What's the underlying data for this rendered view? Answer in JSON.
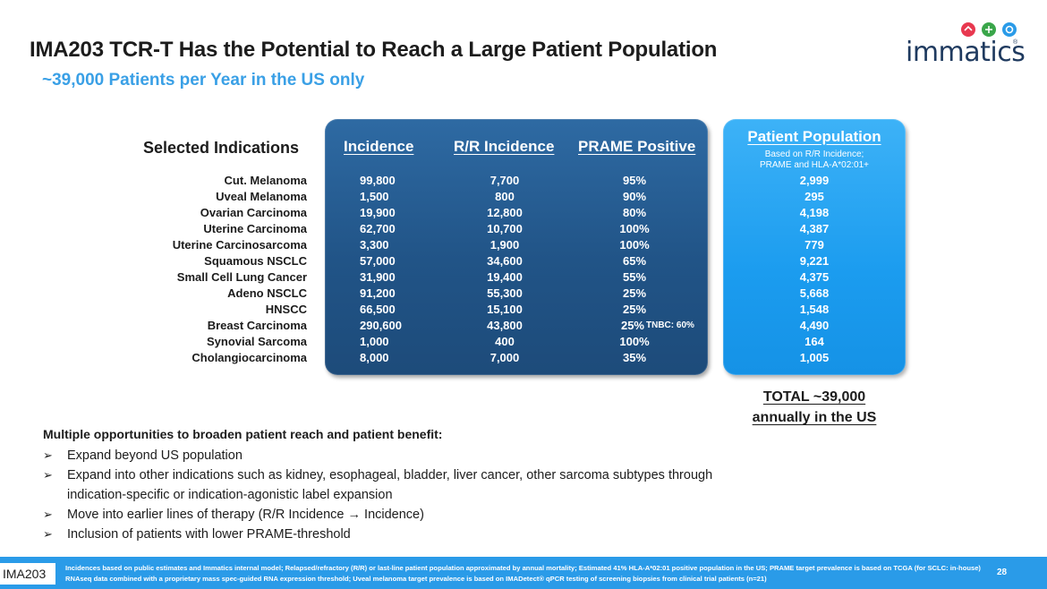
{
  "slide": {
    "title": "IMA203 TCR-T Has the Potential to Reach a Large Patient Population",
    "subtitle": "~39,000 Patients per Year in the US only"
  },
  "logo": {
    "text": "immatics",
    "registered": "®",
    "dot_colors": [
      "#e8384f",
      "#3aa64a",
      "#2a9be8"
    ]
  },
  "table": {
    "row_header": "Selected Indications",
    "columns": {
      "incidence": "Incidence",
      "rr_incidence": "R/R Incidence",
      "prame_positive": "PRAME Positive",
      "patient_population": "Patient Population",
      "patient_population_sub": "Based on R/R Incidence;\nPRAME and HLA-A*02:01+"
    },
    "rows": [
      {
        "indication": "Cut. Melanoma",
        "incidence": "99,800",
        "rr": "7,700",
        "prame": "95%",
        "note": "",
        "population": "2,999"
      },
      {
        "indication": "Uveal Melanoma",
        "incidence": "1,500",
        "rr": "800",
        "prame": "90%",
        "note": "",
        "population": "295"
      },
      {
        "indication": "Ovarian Carcinoma",
        "incidence": "19,900",
        "rr": "12,800",
        "prame": "80%",
        "note": "",
        "population": "4,198"
      },
      {
        "indication": "Uterine Carcinoma",
        "incidence": "62,700",
        "rr": "10,700",
        "prame": "100%",
        "note": "",
        "population": "4,387"
      },
      {
        "indication": "Uterine Carcinosarcoma",
        "incidence": "3,300",
        "rr": "1,900",
        "prame": "100%",
        "note": "",
        "population": "779"
      },
      {
        "indication": "Squamous NSCLC",
        "incidence": "57,000",
        "rr": "34,600",
        "prame": "65%",
        "note": "",
        "population": "9,221"
      },
      {
        "indication": "Small Cell Lung Cancer",
        "incidence": "31,900",
        "rr": "19,400",
        "prame": "55%",
        "note": "",
        "population": "4,375"
      },
      {
        "indication": "Adeno NSCLC",
        "incidence": "91,200",
        "rr": "55,300",
        "prame": "25%",
        "note": "",
        "population": "5,668"
      },
      {
        "indication": "HNSCC",
        "incidence": "66,500",
        "rr": "15,100",
        "prame": "25%",
        "note": "",
        "population": "1,548"
      },
      {
        "indication": "Breast Carcinoma",
        "incidence": "290,600",
        "rr": "43,800",
        "prame": "25%",
        "note": "TNBC: 60%",
        "population": "4,490"
      },
      {
        "indication": "Synovial Sarcoma",
        "incidence": "1,000",
        "rr": "400",
        "prame": "100%",
        "note": "",
        "population": "164"
      },
      {
        "indication": "Cholangiocarcinoma",
        "incidence": "8,000",
        "rr": "7,000",
        "prame": "35%",
        "note": "",
        "population": "1,005"
      }
    ],
    "total": "TOTAL ~39,000\nannually in the US"
  },
  "opportunities": {
    "heading": "Multiple opportunities to broaden patient reach and patient benefit:",
    "items": [
      "Expand beyond US population",
      "Expand into other indications such as kidney, esophageal, bladder, liver cancer, other sarcoma subtypes through indication-specific or indication-agonistic label expansion",
      "Move into earlier lines of therapy (R/R Incidence → Incidence)",
      "Inclusion of patients with lower PRAME-threshold"
    ]
  },
  "footer": {
    "tag": "IMA203",
    "note": "Incidences based on public estimates and Immatics internal model; Relapsed/refractory (R/R) or last-line patient population approximated by annual mortality; Estimated 41% HLA-A*02:01 positive population in the US; PRAME target prevalence is based on TCGA (for SCLC: in-house) RNAseq data combined with a proprietary mass spec-guided RNA expression threshold; Uveal melanoma target prevalence is based on IMADetect® qPCR testing of screening biopsies from clinical trial patients (n=21)",
    "page": "28"
  }
}
